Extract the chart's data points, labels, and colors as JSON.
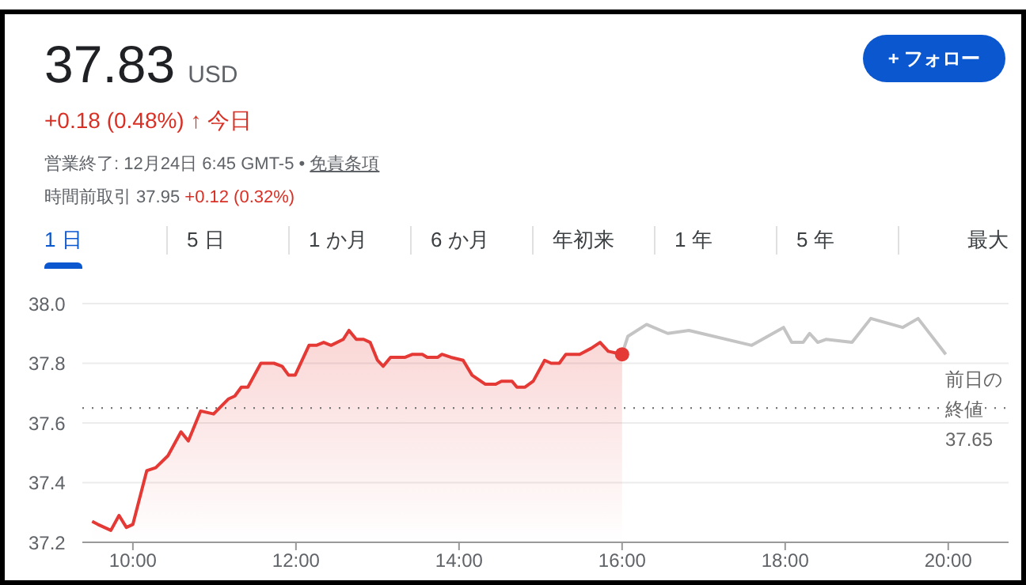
{
  "chart_data": {
    "type": "line",
    "title": "37.83",
    "subtitle": "USD",
    "annotations": [
      "+0.18 (0.48%) ↑ 今日",
      "営業終了: 12月24日 6:45 GMT-5 •",
      "免責条項",
      "時間前取引 37.95",
      "+0.12 (0.32%)",
      "1 日",
      "5 日",
      "1 か月",
      "6 か月",
      "年初来",
      "1 年",
      "5 年",
      "最大",
      "+ フォロー"
    ],
    "series": [
      {
        "type": "area",
        "color": "#e53935",
        "x": [
          9.5,
          9.57,
          9.73,
          9.83,
          9.92,
          10.0,
          10.17,
          10.28,
          10.43,
          10.59,
          10.68,
          10.83,
          10.99,
          11.17,
          11.25,
          11.33,
          11.41,
          11.57,
          11.73,
          11.83,
          11.91,
          11.99,
          12.16,
          12.25,
          12.34,
          12.43,
          12.58,
          12.65,
          12.74,
          12.83,
          12.91,
          13.0,
          13.07,
          13.16,
          13.34,
          13.43,
          13.55,
          13.61,
          13.74,
          13.79,
          13.9,
          14.05,
          14.16,
          14.32,
          14.45,
          14.52,
          14.65,
          14.71,
          14.81,
          14.91,
          15.05,
          15.13,
          15.23,
          15.31,
          15.48,
          15.62,
          15.73,
          15.83,
          16.0
        ],
        "values": [
          37.27,
          37.26,
          37.24,
          37.29,
          37.25,
          37.26,
          37.44,
          37.45,
          37.49,
          37.57,
          37.54,
          37.64,
          37.63,
          37.68,
          37.69,
          37.72,
          37.72,
          37.8,
          37.8,
          37.79,
          37.76,
          37.76,
          37.86,
          37.86,
          37.87,
          37.86,
          37.88,
          37.91,
          37.88,
          37.88,
          37.87,
          37.81,
          37.79,
          37.82,
          37.82,
          37.83,
          37.83,
          37.82,
          37.82,
          37.83,
          37.82,
          37.81,
          37.76,
          37.73,
          37.73,
          37.74,
          37.74,
          37.72,
          37.72,
          37.74,
          37.81,
          37.8,
          37.8,
          37.83,
          37.83,
          37.85,
          37.87,
          37.84,
          37.83
        ]
      },
      {
        "color": "#c4c4c4",
        "x": [
          16.0,
          16.07,
          16.3,
          16.56,
          16.82,
          17.59,
          17.98,
          18.08,
          18.22,
          18.3,
          18.4,
          18.5,
          18.82,
          19.05,
          19.44,
          19.63,
          19.97
        ],
        "values": [
          37.83,
          37.89,
          37.93,
          37.9,
          37.91,
          37.86,
          37.92,
          37.87,
          37.87,
          37.9,
          37.87,
          37.88,
          37.87,
          37.95,
          37.92,
          37.95,
          37.83
        ]
      },
      {
        "type": "scatter",
        "color": "#e53935",
        "x": [
          16.0
        ],
        "values": [
          37.83
        ]
      }
    ],
    "xlim": [
      9.38,
      20.74
    ],
    "xticks": [
      {
        "value": 10,
        "label": "10:00"
      },
      {
        "value": 12,
        "label": "12:00"
      },
      {
        "value": 14,
        "label": "14:00"
      },
      {
        "value": 16,
        "label": "16:00"
      },
      {
        "value": 18,
        "label": "18:00"
      },
      {
        "value": 20,
        "label": "20:00"
      }
    ],
    "ylim": [
      37.2,
      38.0
    ],
    "yticks": [
      37.2,
      37.4,
      37.6,
      37.8,
      {
        "value": 38.0,
        "label": "38.0"
      }
    ],
    "grid": "y",
    "legend": false,
    "ref_lines": [
      {
        "axis": "y",
        "value": 37.65,
        "label": "前日の終値37.65",
        "line_style": "dotted",
        "color": "#777777"
      }
    ]
  }
}
